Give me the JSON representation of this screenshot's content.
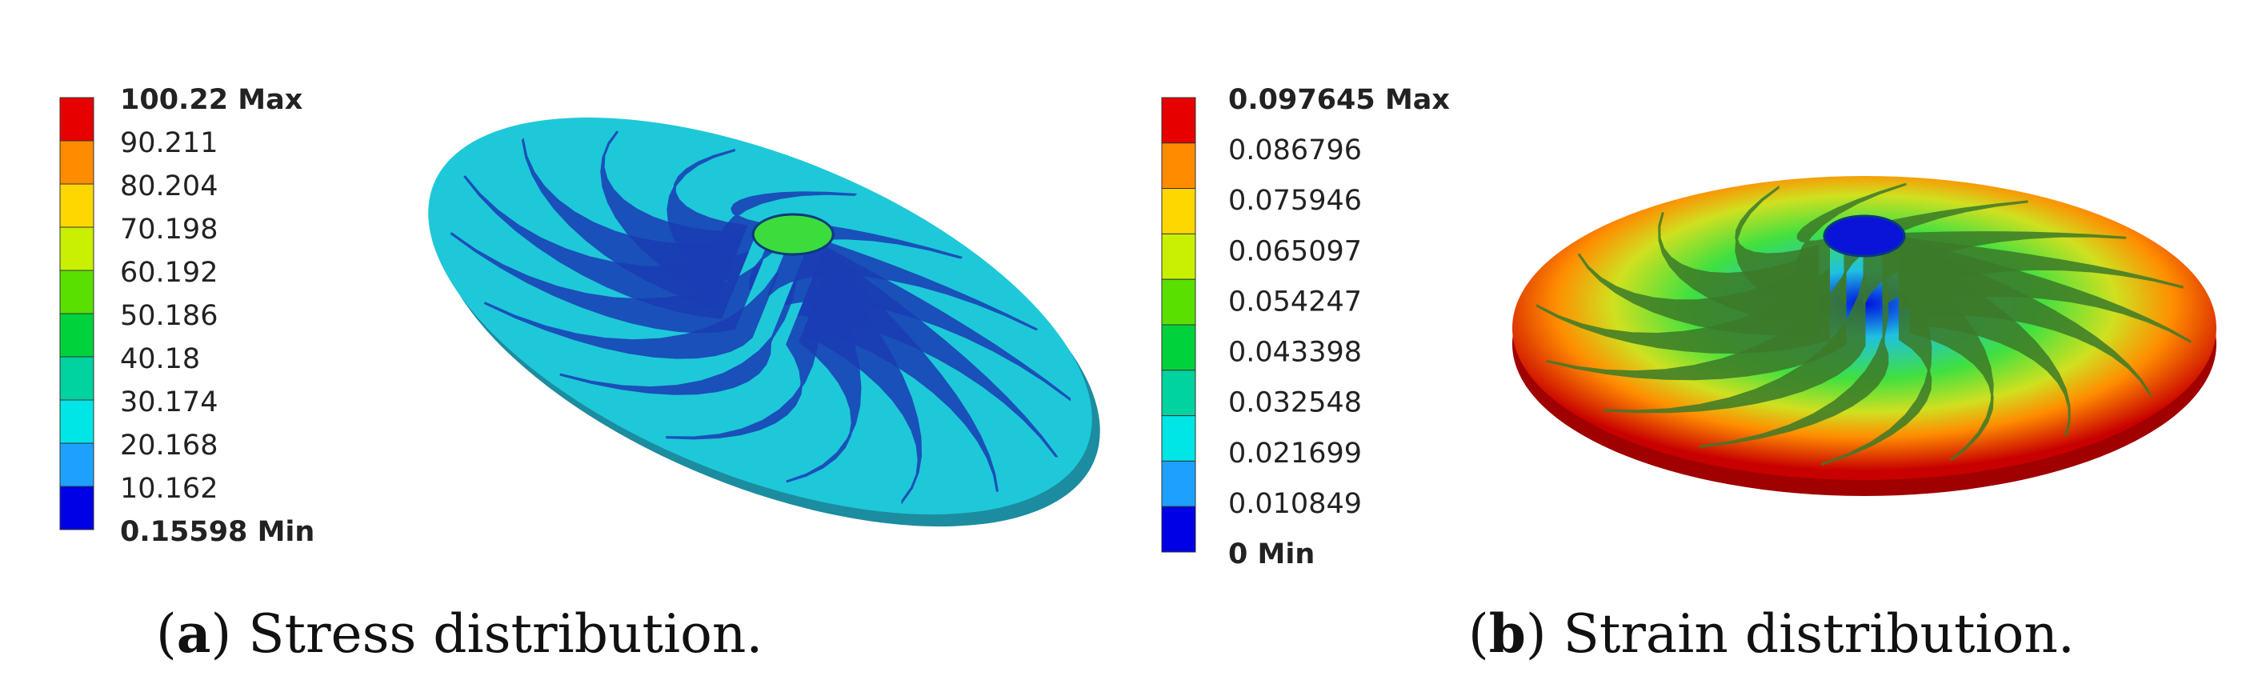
{
  "panels": [
    {
      "legend": {
        "labels": [
          "100.22 Max",
          "90.211",
          "80.204",
          "70.198",
          "60.192",
          "50.186",
          "40.18",
          "30.174",
          "20.168",
          "10.162",
          "0.15598 Min"
        ],
        "colors": [
          "#e60000",
          "#ff8c00",
          "#ffd700",
          "#c8f000",
          "#5ae000",
          "#00d23c",
          "#00d2a0",
          "#00e6e6",
          "#1ea0ff",
          "#0000e6"
        ]
      },
      "caption": {
        "open": "(",
        "label": "a",
        "text": ") Stress distribution."
      }
    },
    {
      "legend": {
        "labels": [
          "0.097645 Max",
          "0.086796",
          "0.075946",
          "0.065097",
          "0.054247",
          "0.043398",
          "0.032548",
          "0.021699",
          "0.010849",
          "0 Min"
        ],
        "colors": [
          "#e60000",
          "#ff8c00",
          "#ffd700",
          "#c8f000",
          "#5ae000",
          "#00d23c",
          "#00d2a0",
          "#00e6e6",
          "#1ea0ff",
          "#0000e6"
        ]
      },
      "caption": {
        "open": "(",
        "label": "b",
        "text": ") Strain distribution."
      }
    }
  ]
}
